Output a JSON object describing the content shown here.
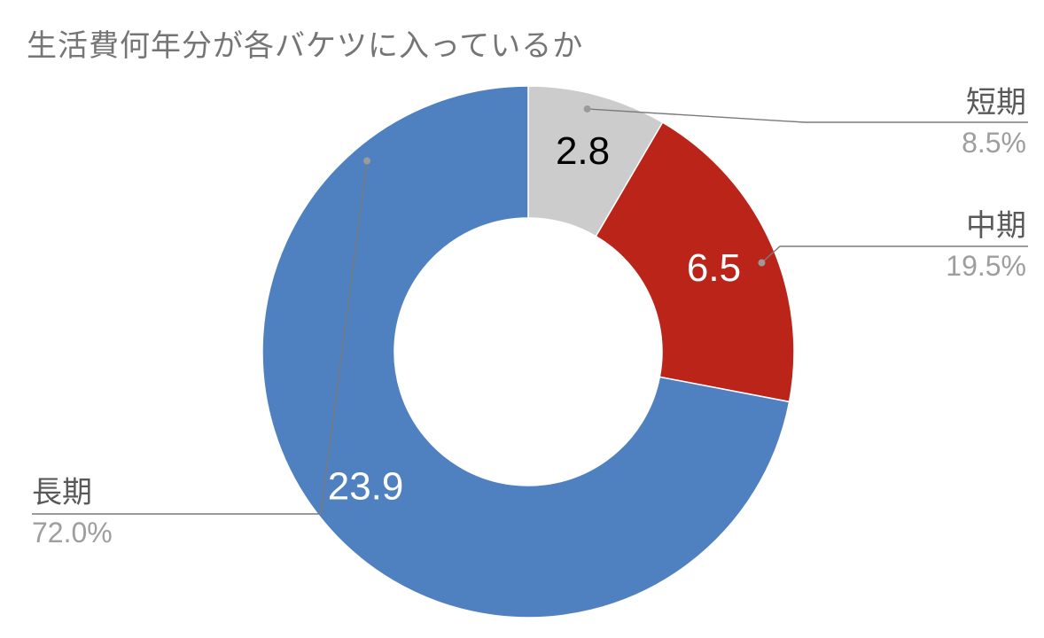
{
  "chart_data": {
    "type": "pie",
    "title": "生活費何年分が各バケツに入っているか",
    "donut": true,
    "categories": [
      "短期",
      "中期",
      "長期"
    ],
    "values": [
      2.8,
      6.5,
      23.9
    ],
    "value_labels": [
      "2.8",
      "6.5",
      "23.9"
    ],
    "percent_labels": [
      "8.5%",
      "19.5%",
      "72.0%"
    ],
    "colors": [
      "#cccccc",
      "#bb2519",
      "#4f81c1"
    ],
    "label_colors": [
      "#000000",
      "#ffffff",
      "#ffffff"
    ],
    "legend_placement": "outside-callouts",
    "start_angle": "12 o'clock, clockwise"
  }
}
